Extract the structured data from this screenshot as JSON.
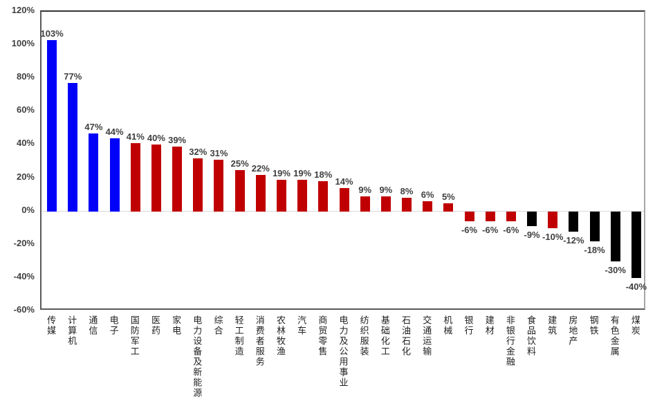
{
  "chart_data": {
    "type": "bar",
    "title": "",
    "xlabel": "",
    "ylabel": "",
    "ylim": [
      -60,
      120
    ],
    "grid": "zero-line-only",
    "legend": "none",
    "yticks": [
      {
        "label": "120%",
        "value": 120
      },
      {
        "label": "100%",
        "value": 100
      },
      {
        "label": "80%",
        "value": 80
      },
      {
        "label": "60%",
        "value": 60
      },
      {
        "label": "40%",
        "value": 40
      },
      {
        "label": "20%",
        "value": 20
      },
      {
        "label": "0%",
        "value": 0
      },
      {
        "label": "-20%",
        "value": -20
      },
      {
        "label": "-40%",
        "value": -40
      },
      {
        "label": "-60%",
        "value": -60
      }
    ],
    "color_map": {
      "blue": "#0202f8",
      "red": "#c00000",
      "black": "#000000"
    },
    "categories": [
      "传媒",
      "计算机",
      "通信",
      "电子",
      "国防军工",
      "医药",
      "家电",
      "电力设备及新能源",
      "综合",
      "轻工制造",
      "消费者服务",
      "农林牧渔",
      "汽车",
      "商贸零售",
      "电力及公用事业",
      "纺织服装",
      "基础化工",
      "石油石化",
      "交通运输",
      "机械",
      "银行",
      "建材",
      "非银行金融",
      "食品饮料",
      "建筑",
      "房地产",
      "钢铁",
      "有色金属",
      "煤炭"
    ],
    "values": [
      103,
      77,
      47,
      44,
      41,
      40,
      39,
      32,
      31,
      25,
      22,
      19,
      19,
      18,
      14,
      9,
      9,
      8,
      6,
      5,
      -6,
      -6,
      -6,
      -9,
      -10,
      -12,
      -18,
      -30,
      -40
    ],
    "value_labels": [
      "103%",
      "77%",
      "47%",
      "44%",
      "41%",
      "40%",
      "39%",
      "32%",
      "31%",
      "25%",
      "22%",
      "19%",
      "19%",
      "18%",
      "14%",
      "9%",
      "9%",
      "8%",
      "6%",
      "5%",
      "-6%",
      "-6%",
      "-6%",
      "-9%",
      "-10%",
      "-12%",
      "-18%",
      "-30%",
      "-40%"
    ],
    "bar_colors": [
      "blue",
      "blue",
      "blue",
      "blue",
      "red",
      "red",
      "red",
      "red",
      "red",
      "red",
      "red",
      "red",
      "red",
      "red",
      "red",
      "red",
      "red",
      "red",
      "red",
      "red",
      "red",
      "red",
      "red",
      "black",
      "red",
      "black",
      "black",
      "black",
      "black"
    ]
  }
}
